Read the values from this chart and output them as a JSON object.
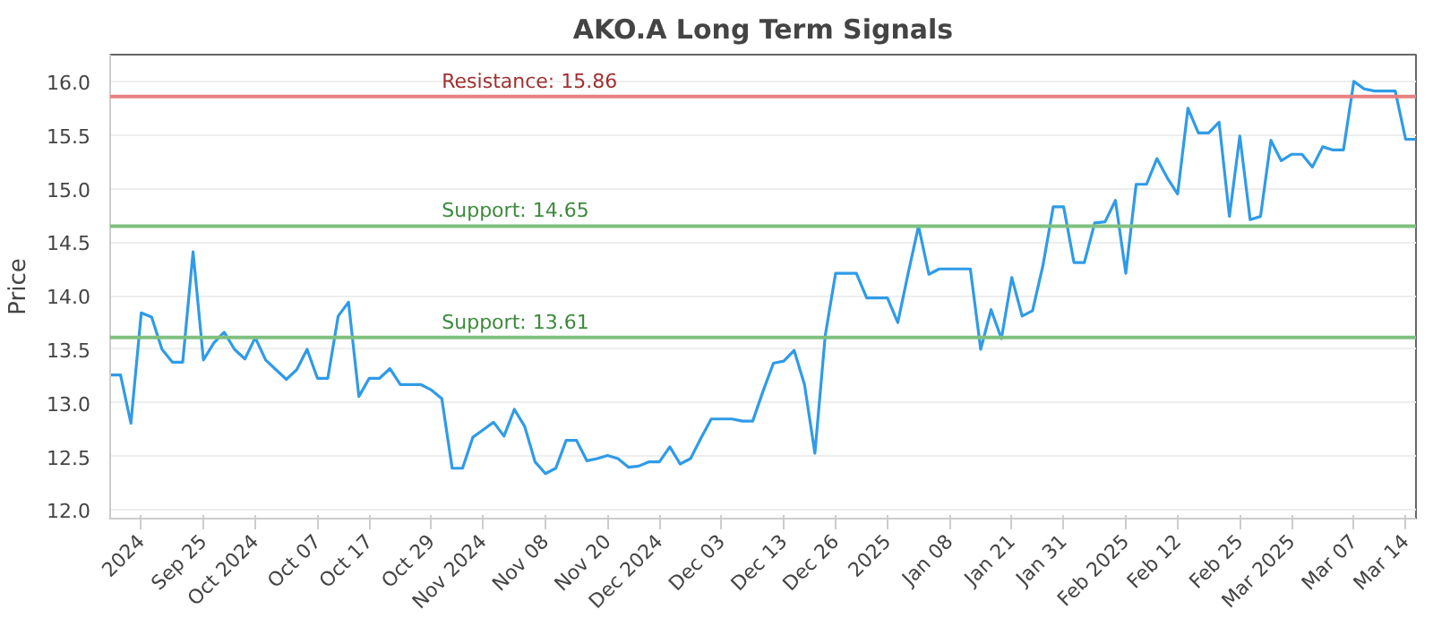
{
  "chart_data": {
    "type": "line",
    "title": "AKO.A Long Term Signals",
    "ylabel": "Price",
    "categories": [
      null,
      null,
      null,
      "2024",
      null,
      null,
      null,
      null,
      null,
      "Sep 25",
      null,
      null,
      null,
      null,
      "Oct 2024",
      null,
      null,
      null,
      null,
      null,
      "Oct 07",
      null,
      null,
      null,
      null,
      "Oct 17",
      null,
      null,
      null,
      null,
      null,
      "Oct 29",
      null,
      null,
      null,
      null,
      "Nov 2024",
      null,
      null,
      null,
      null,
      null,
      "Nov 08",
      null,
      null,
      null,
      null,
      null,
      "Nov 20",
      null,
      null,
      null,
      null,
      "Dec 2024",
      null,
      null,
      null,
      null,
      null,
      "Dec 03",
      null,
      null,
      null,
      null,
      null,
      "Dec 13",
      null,
      null,
      null,
      null,
      "Dec 26",
      null,
      null,
      null,
      null,
      "2025",
      null,
      null,
      null,
      null,
      null,
      "Jan 08",
      null,
      null,
      null,
      null,
      null,
      "Jan 21",
      null,
      null,
      null,
      null,
      "Jan 31",
      null,
      null,
      null,
      null,
      null,
      "Feb 2025",
      null,
      null,
      null,
      null,
      "Feb 12",
      null,
      null,
      null,
      null,
      null,
      "Feb 25",
      null,
      null,
      null,
      null,
      "Mar 2025",
      null,
      null,
      null,
      null,
      null,
      "Mar 07",
      null,
      null,
      null,
      null,
      "Mar 14",
      null
    ],
    "series": [
      {
        "color": "#2f9be8",
        "values": [
          13.26,
          13.26,
          12.81,
          13.84,
          13.8,
          13.5,
          13.38,
          13.38,
          14.41,
          13.4,
          13.56,
          13.66,
          13.5,
          13.41,
          13.61,
          13.4,
          13.31,
          13.22,
          13.31,
          13.5,
          13.23,
          13.23,
          13.81,
          13.94,
          13.06,
          13.23,
          13.23,
          13.32,
          13.17,
          13.17,
          13.17,
          13.12,
          13.04,
          12.39,
          12.39,
          12.68,
          12.75,
          12.82,
          12.69,
          12.94,
          12.78,
          12.45,
          12.34,
          12.39,
          12.65,
          12.65,
          12.46,
          12.48,
          12.51,
          12.48,
          12.4,
          12.41,
          12.45,
          12.45,
          12.59,
          12.43,
          12.48,
          12.67,
          12.85,
          12.85,
          12.85,
          12.83,
          12.83,
          13.11,
          13.37,
          13.39,
          13.49,
          13.17,
          12.53,
          13.63,
          14.21,
          14.21,
          14.21,
          13.98,
          13.98,
          13.98,
          13.75,
          14.21,
          14.65,
          14.2,
          14.25,
          14.25,
          14.25,
          14.25,
          13.5,
          13.87,
          13.6,
          14.17,
          13.81,
          13.86,
          14.28,
          14.83,
          14.83,
          14.31,
          14.31,
          14.68,
          14.69,
          14.89,
          14.21,
          15.04,
          15.04,
          15.28,
          15.1,
          14.95,
          15.75,
          15.52,
          15.52,
          15.62,
          14.74,
          15.49,
          14.71,
          14.74,
          15.45,
          15.26,
          15.32,
          15.32,
          15.2,
          15.39,
          15.36,
          15.36,
          16.0,
          15.93,
          15.91,
          15.91,
          15.91,
          15.46,
          15.46
        ]
      }
    ],
    "ylim": [
      11.92,
      16.25
    ],
    "yticks": [
      {
        "value": 12,
        "label": "12.0"
      },
      {
        "value": 12.5,
        "label": "12.5"
      },
      {
        "value": 13,
        "label": "13.0"
      },
      {
        "value": 13.5,
        "label": "13.5"
      },
      {
        "value": 14,
        "label": "14.0"
      },
      {
        "value": 14.5,
        "label": "14.5"
      },
      {
        "value": 15,
        "label": "15.0"
      },
      {
        "value": 15.5,
        "label": "15.5"
      },
      {
        "value": 16,
        "label": "16.0"
      }
    ],
    "grid": "y",
    "marker": "none",
    "line_style": "solid",
    "ref_lines": [
      {
        "axis": "y",
        "value": 15.86,
        "label": "Resistance: 15.86",
        "color": "#e88080"
      },
      {
        "axis": "y",
        "value": 14.65,
        "label": "Support: 14.65",
        "color": "#7fc07f"
      },
      {
        "axis": "y",
        "value": 13.61,
        "label": "Support: 13.61",
        "color": "#7fc07f"
      }
    ]
  }
}
